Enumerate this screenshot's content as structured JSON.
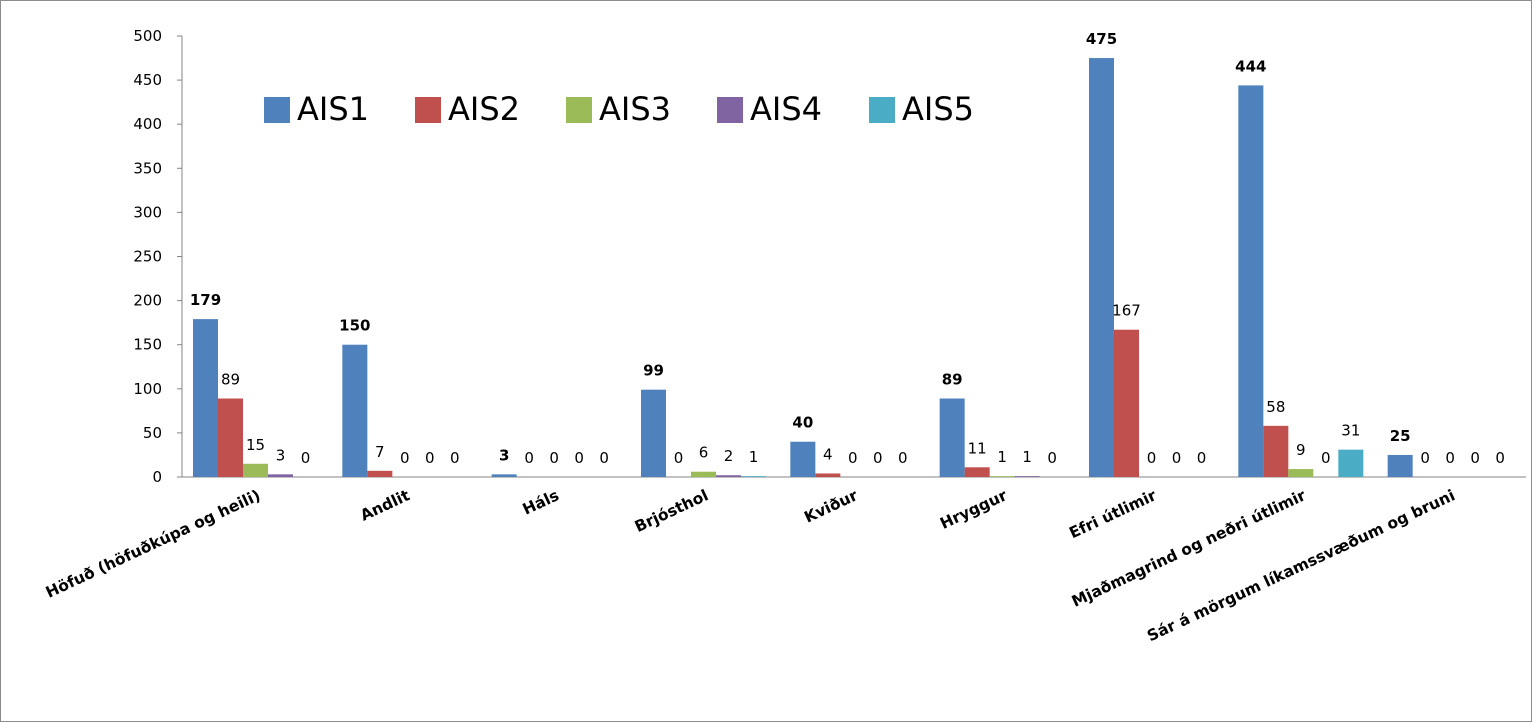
{
  "chart_data": {
    "type": "bar",
    "title": "",
    "xlabel": "",
    "ylabel": "",
    "ylim": [
      0,
      500
    ],
    "yticks": [
      "0",
      "50",
      "100",
      "150",
      "200",
      "250",
      "300",
      "350",
      "400",
      "450",
      "500"
    ],
    "grid": false,
    "legend_position": "top",
    "categories": [
      "Höfuð (höfuðkúpa og heili)",
      "Andlit",
      "Háls",
      "Brjósthol",
      "Kviður",
      "Hryggur",
      "Efri útlimir",
      "Mjaðmagrind og neðri útlimir",
      "Sár á mörgum líkamssvæðum og bruni"
    ],
    "series": [
      {
        "name": "AIS1",
        "color": "#4F81BD",
        "values": [
          179,
          150,
          3,
          99,
          40,
          89,
          475,
          444,
          25
        ]
      },
      {
        "name": "AIS2",
        "color": "#C0504D",
        "values": [
          89,
          7,
          0,
          0,
          4,
          11,
          167,
          58,
          0
        ]
      },
      {
        "name": "AIS3",
        "color": "#9BBB59",
        "values": [
          15,
          0,
          0,
          6,
          0,
          1,
          0,
          9,
          0
        ]
      },
      {
        "name": "AIS4",
        "color": "#8064A2",
        "values": [
          3,
          0,
          0,
          2,
          0,
          1,
          0,
          0,
          0
        ]
      },
      {
        "name": "AIS5",
        "color": "#4BACC6",
        "values": [
          0,
          0,
          0,
          1,
          0,
          0,
          0,
          31,
          0
        ]
      }
    ],
    "data_labels": [
      [
        "179",
        "89",
        "15",
        "3",
        "0"
      ],
      [
        "150",
        "7",
        "0",
        "0",
        "0"
      ],
      [
        "3",
        "0",
        "0",
        "0",
        "0"
      ],
      [
        "99",
        "0",
        "6",
        "2",
        "1"
      ],
      [
        "40",
        "4",
        "0",
        "0",
        "0"
      ],
      [
        "89",
        "11",
        "1",
        "1",
        "0"
      ],
      [
        "475",
        "167",
        "0",
        "0",
        "0"
      ],
      [
        "444",
        "58",
        "9",
        "0",
        "31"
      ],
      [
        "25",
        "0",
        "0",
        "0",
        "0"
      ]
    ]
  }
}
